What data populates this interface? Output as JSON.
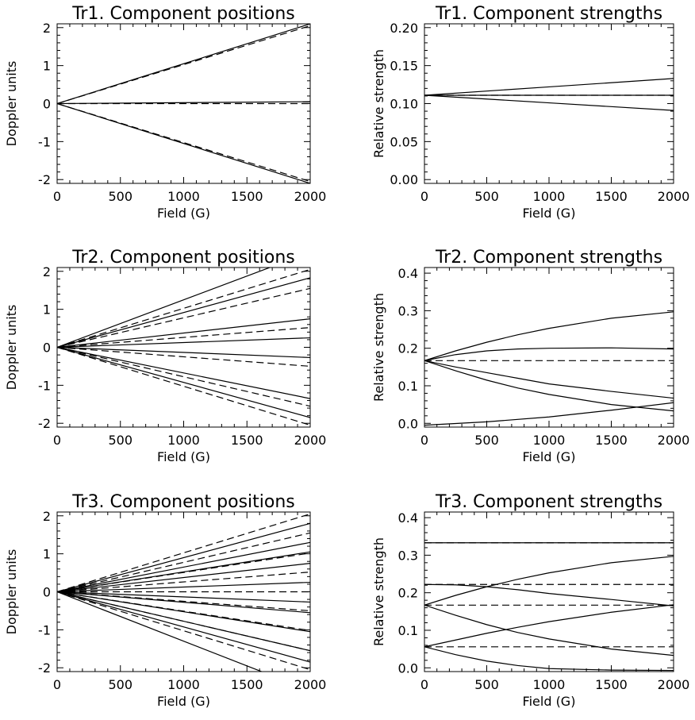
{
  "chart_data": [
    {
      "type": "line",
      "title": "Tr1. Component positions",
      "xlabel": "Field (G)",
      "ylabel": "Doppler units",
      "xlim": [
        0,
        2000
      ],
      "ylim": [
        -2.1,
        2.1
      ],
      "xticks": [
        0,
        500,
        1000,
        1500,
        2000
      ],
      "yticks": [
        -2,
        -1,
        0,
        1,
        2
      ],
      "ytick_format": "int",
      "series": [
        {
          "style": "solid",
          "x": [
            0,
            2000
          ],
          "y": [
            0,
            2.1
          ]
        },
        {
          "style": "solid",
          "x": [
            0,
            2000
          ],
          "y": [
            0,
            0.05
          ]
        },
        {
          "style": "solid",
          "x": [
            0,
            2000
          ],
          "y": [
            0,
            -2.1
          ]
        },
        {
          "style": "dashed",
          "x": [
            0,
            2000
          ],
          "y": [
            0,
            2.05
          ]
        },
        {
          "style": "dashed",
          "x": [
            0,
            2000
          ],
          "y": [
            0,
            0
          ]
        },
        {
          "style": "dashed",
          "x": [
            0,
            2000
          ],
          "y": [
            0,
            -2.05
          ]
        }
      ]
    },
    {
      "type": "line",
      "title": "Tr1. Component strengths",
      "xlabel": "Field (G)",
      "ylabel": "Relative strength",
      "xlim": [
        0,
        2000
      ],
      "ylim": [
        -0.005,
        0.205
      ],
      "xticks": [
        0,
        500,
        1000,
        1500,
        2000
      ],
      "yticks": [
        0.0,
        0.05,
        0.1,
        0.15,
        0.2
      ],
      "ytick_format": "2dp",
      "series": [
        {
          "style": "solid",
          "x": [
            0,
            1000,
            2000
          ],
          "y": [
            0.111,
            0.122,
            0.133
          ]
        },
        {
          "style": "solid",
          "x": [
            0,
            1000,
            2000
          ],
          "y": [
            0.111,
            0.101,
            0.091
          ]
        },
        {
          "style": "solid",
          "x": [
            0,
            2000
          ],
          "y": [
            0.111,
            0.111
          ]
        },
        {
          "style": "dashed",
          "x": [
            0,
            2000
          ],
          "y": [
            0.111,
            0.111
          ]
        }
      ]
    },
    {
      "type": "line",
      "title": "Tr2. Component positions",
      "xlabel": "Field (G)",
      "ylabel": "Doppler units",
      "xlim": [
        0,
        2000
      ],
      "ylim": [
        -2.1,
        2.1
      ],
      "xticks": [
        0,
        500,
        1000,
        1500,
        2000
      ],
      "yticks": [
        -2,
        -1,
        0,
        1,
        2
      ],
      "ytick_format": "int",
      "series": [
        {
          "style": "solid",
          "x": [
            0,
            2000
          ],
          "y": [
            0,
            2.5
          ]
        },
        {
          "style": "solid",
          "x": [
            0,
            2000
          ],
          "y": [
            0,
            1.83
          ]
        },
        {
          "style": "solid",
          "x": [
            0,
            2000
          ],
          "y": [
            0,
            0.75
          ]
        },
        {
          "style": "solid",
          "x": [
            0,
            2000
          ],
          "y": [
            0,
            0.25
          ]
        },
        {
          "style": "solid",
          "x": [
            0,
            2000
          ],
          "y": [
            0,
            -0.27
          ]
        },
        {
          "style": "solid",
          "x": [
            0,
            2000
          ],
          "y": [
            0,
            -1.35
          ]
        },
        {
          "style": "solid",
          "x": [
            0,
            2000
          ],
          "y": [
            0,
            -1.85
          ]
        },
        {
          "style": "dashed",
          "x": [
            0,
            2000
          ],
          "y": [
            0,
            2.05
          ]
        },
        {
          "style": "dashed",
          "x": [
            0,
            2000
          ],
          "y": [
            0,
            1.55
          ]
        },
        {
          "style": "dashed",
          "x": [
            0,
            2000
          ],
          "y": [
            0,
            0.52
          ]
        },
        {
          "style": "dashed",
          "x": [
            0,
            2000
          ],
          "y": [
            0,
            -0.5
          ]
        },
        {
          "style": "dashed",
          "x": [
            0,
            2000
          ],
          "y": [
            0,
            -1.55
          ]
        },
        {
          "style": "dashed",
          "x": [
            0,
            2000
          ],
          "y": [
            0,
            -2.05
          ]
        }
      ]
    },
    {
      "type": "line",
      "title": "Tr2. Component strengths",
      "xlabel": "Field (G)",
      "ylabel": "Relative strength",
      "xlim": [
        0,
        2000
      ],
      "ylim": [
        -0.01,
        0.415
      ],
      "xticks": [
        0,
        500,
        1000,
        1500,
        2000
      ],
      "yticks": [
        0.0,
        0.1,
        0.2,
        0.3,
        0.4
      ],
      "ytick_format": "1dp",
      "series": [
        {
          "style": "solid",
          "x": [
            0,
            250,
            500,
            750,
            1000,
            1500,
            2000
          ],
          "y": [
            0.167,
            0.193,
            0.216,
            0.236,
            0.253,
            0.28,
            0.297
          ]
        },
        {
          "style": "solid",
          "x": [
            0,
            250,
            500,
            750,
            1000,
            1500,
            2000
          ],
          "y": [
            0.167,
            0.183,
            0.193,
            0.198,
            0.2,
            0.201,
            0.198
          ]
        },
        {
          "style": "solid",
          "x": [
            0,
            250,
            500,
            750,
            1000,
            1500,
            2000
          ],
          "y": [
            0.167,
            0.15,
            0.135,
            0.12,
            0.105,
            0.085,
            0.067
          ]
        },
        {
          "style": "solid",
          "x": [
            0,
            250,
            500,
            750,
            1000,
            1500,
            2000
          ],
          "y": [
            0.167,
            0.14,
            0.115,
            0.094,
            0.077,
            0.05,
            0.033
          ]
        },
        {
          "style": "solid",
          "x": [
            0,
            500,
            1000,
            1500,
            2000
          ],
          "y": [
            -0.005,
            0.004,
            0.017,
            0.035,
            0.055
          ]
        },
        {
          "style": "dashed",
          "x": [
            0,
            2000
          ],
          "y": [
            0.167,
            0.167
          ]
        }
      ]
    },
    {
      "type": "line",
      "title": "Tr3. Component positions",
      "xlabel": "Field (G)",
      "ylabel": "Doppler units",
      "xlim": [
        0,
        2000
      ],
      "ylim": [
        -2.1,
        2.1
      ],
      "xticks": [
        0,
        500,
        1000,
        1500,
        2000
      ],
      "yticks": [
        -2,
        -1,
        0,
        1,
        2
      ],
      "ytick_format": "int",
      "series": [
        {
          "style": "solid",
          "x": [
            0,
            2000
          ],
          "y": [
            0,
            1.8
          ]
        },
        {
          "style": "solid",
          "x": [
            0,
            2000
          ],
          "y": [
            0,
            1.3
          ]
        },
        {
          "style": "solid",
          "x": [
            0,
            2000
          ],
          "y": [
            0,
            1.05
          ]
        },
        {
          "style": "solid",
          "x": [
            0,
            2000
          ],
          "y": [
            0,
            0.75
          ]
        },
        {
          "style": "solid",
          "x": [
            0,
            2000
          ],
          "y": [
            0,
            0.25
          ]
        },
        {
          "style": "solid",
          "x": [
            0,
            2000
          ],
          "y": [
            0,
            -0.27
          ]
        },
        {
          "style": "solid",
          "x": [
            0,
            2000
          ],
          "y": [
            0,
            -0.55
          ]
        },
        {
          "style": "solid",
          "x": [
            0,
            2000
          ],
          "y": [
            0,
            -1.05
          ]
        },
        {
          "style": "solid",
          "x": [
            0,
            2000
          ],
          "y": [
            0,
            -1.55
          ]
        },
        {
          "style": "solid",
          "x": [
            0,
            2000
          ],
          "y": [
            0,
            -1.85
          ]
        },
        {
          "style": "solid",
          "x": [
            0,
            2000
          ],
          "y": [
            0,
            -2.6
          ]
        },
        {
          "style": "dashed",
          "x": [
            0,
            2000
          ],
          "y": [
            0,
            2.05
          ]
        },
        {
          "style": "dashed",
          "x": [
            0,
            2000
          ],
          "y": [
            0,
            1.55
          ]
        },
        {
          "style": "dashed",
          "x": [
            0,
            2000
          ],
          "y": [
            0,
            1.02
          ]
        },
        {
          "style": "dashed",
          "x": [
            0,
            2000
          ],
          "y": [
            0,
            0.52
          ]
        },
        {
          "style": "dashed",
          "x": [
            0,
            2000
          ],
          "y": [
            0,
            0
          ]
        },
        {
          "style": "dashed",
          "x": [
            0,
            2000
          ],
          "y": [
            0,
            -0.5
          ]
        },
        {
          "style": "dashed",
          "x": [
            0,
            2000
          ],
          "y": [
            0,
            -1.02
          ]
        },
        {
          "style": "dashed",
          "x": [
            0,
            2000
          ],
          "y": [
            0,
            -1.55
          ]
        },
        {
          "style": "dashed",
          "x": [
            0,
            2000
          ],
          "y": [
            0,
            -2.05
          ]
        }
      ]
    },
    {
      "type": "line",
      "title": "Tr3. Component strengths",
      "xlabel": "Field (G)",
      "ylabel": "Relative strength",
      "xlim": [
        0,
        2000
      ],
      "ylim": [
        -0.01,
        0.415
      ],
      "xticks": [
        0,
        500,
        1000,
        1500,
        2000
      ],
      "yticks": [
        0.0,
        0.1,
        0.2,
        0.3,
        0.4
      ],
      "ytick_format": "1dp",
      "series": [
        {
          "style": "solid",
          "x": [
            0,
            2000
          ],
          "y": [
            0.333,
            0.333
          ]
        },
        {
          "style": "solid",
          "x": [
            0,
            250,
            500,
            750,
            1000,
            1500,
            2000
          ],
          "y": [
            0.222,
            0.221,
            0.216,
            0.208,
            0.198,
            0.182,
            0.165
          ]
        },
        {
          "style": "solid",
          "x": [
            0,
            250,
            500,
            750,
            1000,
            1500,
            2000
          ],
          "y": [
            0.167,
            0.193,
            0.216,
            0.236,
            0.253,
            0.28,
            0.297
          ]
        },
        {
          "style": "solid",
          "x": [
            0,
            250,
            500,
            750,
            1000,
            1500,
            2000
          ],
          "y": [
            0.167,
            0.14,
            0.115,
            0.094,
            0.077,
            0.05,
            0.033
          ]
        },
        {
          "style": "solid",
          "x": [
            0,
            250,
            500,
            750,
            1000,
            1500,
            2000
          ],
          "y": [
            0.056,
            0.074,
            0.092,
            0.108,
            0.123,
            0.148,
            0.168
          ]
        },
        {
          "style": "solid",
          "x": [
            0,
            250,
            500,
            750,
            1000,
            1500,
            2000
          ],
          "y": [
            0.056,
            0.035,
            0.018,
            0.006,
            -0.002,
            -0.006,
            -0.007
          ]
        },
        {
          "style": "dashed",
          "x": [
            0,
            2000
          ],
          "y": [
            0.333,
            0.333
          ]
        },
        {
          "style": "dashed",
          "x": [
            0,
            2000
          ],
          "y": [
            0.222,
            0.222
          ]
        },
        {
          "style": "dashed",
          "x": [
            0,
            2000
          ],
          "y": [
            0.167,
            0.167
          ]
        },
        {
          "style": "dashed",
          "x": [
            0,
            2000
          ],
          "y": [
            0.056,
            0.056
          ]
        }
      ]
    }
  ]
}
